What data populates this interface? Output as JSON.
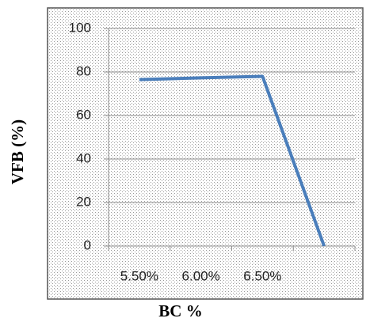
{
  "chart_data": {
    "type": "line",
    "x_label": "BC %",
    "y_label": "VFB (%)",
    "categories": [
      "5.50%",
      "6.00%",
      "6.50%",
      null
    ],
    "series": [
      {
        "name": "VFB",
        "color": "#4a7ebb",
        "values": [
          76.5,
          77.3,
          78,
          0
        ]
      }
    ],
    "ylim": [
      0,
      100
    ],
    "yticks": [
      0,
      20,
      40,
      60,
      80,
      100
    ],
    "grid": true
  }
}
